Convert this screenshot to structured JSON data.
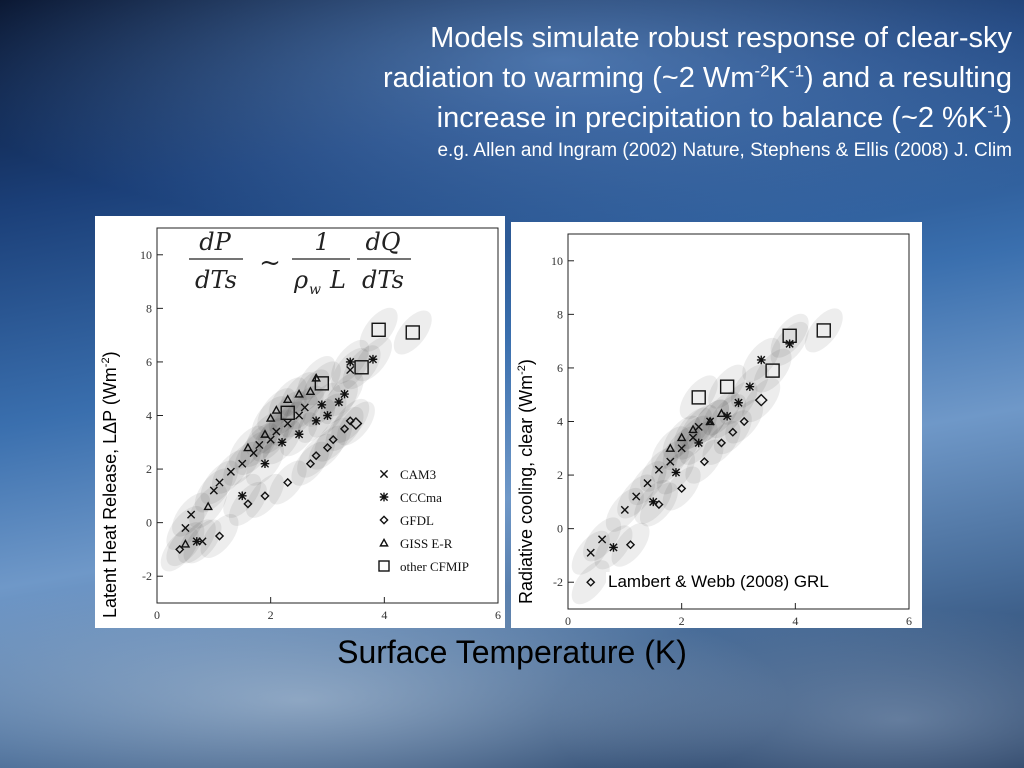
{
  "slide": {
    "title_lines": [
      {
        "text": "Models simulate robust response of clear-sky"
      },
      {
        "pre": "radiation to warming (~2 Wm",
        "sup1": "-2",
        "mid": "K",
        "sup2": "-1",
        "post": ") and a resulting"
      },
      {
        "pre": "increase in precipitation to balance (~2 %K",
        "sup1": "-1",
        "post": ")"
      }
    ],
    "reference": "e.g. Allen and Ingram (2002) Nature, Stephens & Ellis (2008) J. Clim",
    "xlabel": "Surface Temperature (K)",
    "credit": "Lambert & Webb (2008) GRL"
  },
  "equation": {
    "lhs_num": "dP",
    "lhs_den": "dTs",
    "op": "~",
    "one": "1",
    "rho": "ρ",
    "rho_sub": "w",
    "L": "L",
    "rhs_num": "dQ",
    "rhs_den": "dTs"
  },
  "legend": [
    "CAM3",
    "CCCma",
    "GFDL",
    "GISS E-R",
    "other CFMIP"
  ],
  "chart_data": [
    {
      "type": "scatter",
      "title": "",
      "ylabel_pre": "Latent Heat Release, LΔP (Wm",
      "ylabel_sup": "-2",
      "ylabel_post": ")",
      "xlim": [
        0,
        6
      ],
      "ylim": [
        -3,
        11
      ],
      "xticks": [
        0,
        2,
        4,
        6
      ],
      "yticks": [
        -2,
        0,
        2,
        4,
        6,
        8,
        10
      ],
      "legend_position": "lower-right",
      "series": [
        {
          "name": "CAM3",
          "marker": "x",
          "x": [
            0.5,
            0.6,
            0.8,
            1.0,
            1.1,
            1.3,
            1.5,
            1.7,
            1.8,
            2.0,
            2.1,
            2.3,
            2.5,
            2.6,
            3.4
          ],
          "y": [
            -0.2,
            0.3,
            -0.7,
            1.2,
            1.5,
            1.9,
            2.2,
            2.6,
            2.9,
            3.1,
            3.4,
            3.7,
            4.0,
            4.3,
            5.7
          ]
        },
        {
          "name": "CCCma",
          "marker": "asterisk",
          "x": [
            0.7,
            1.5,
            1.9,
            2.2,
            2.5,
            2.8,
            2.9,
            3.0,
            3.2,
            3.3,
            3.4,
            3.8
          ],
          "y": [
            -0.7,
            1.0,
            2.2,
            3.0,
            3.3,
            3.8,
            4.4,
            4.0,
            4.5,
            4.8,
            6.0,
            6.1
          ]
        },
        {
          "name": "GFDL",
          "marker": "diamond",
          "x": [
            0.4,
            1.1,
            1.6,
            1.9,
            2.3,
            2.7,
            2.8,
            3.0,
            3.1,
            3.3,
            3.4,
            3.5
          ],
          "y": [
            -1.0,
            -0.5,
            0.7,
            1.0,
            1.5,
            2.2,
            2.5,
            2.8,
            3.1,
            3.5,
            3.8,
            3.7
          ]
        },
        {
          "name": "GISS E-R",
          "marker": "triangle",
          "x": [
            0.5,
            0.9,
            1.6,
            1.9,
            2.0,
            2.1,
            2.3,
            2.5,
            2.7,
            2.8
          ],
          "y": [
            -0.8,
            0.6,
            2.8,
            3.3,
            3.9,
            4.2,
            4.6,
            4.8,
            4.9,
            5.4
          ]
        },
        {
          "name": "other CFMIP",
          "marker": "square",
          "x": [
            2.3,
            2.9,
            3.6,
            3.9,
            4.5
          ],
          "y": [
            4.1,
            5.2,
            5.8,
            7.2,
            7.1
          ]
        }
      ]
    },
    {
      "type": "scatter",
      "title": "",
      "ylabel_pre": "Radiative cooling, clear (Wm",
      "ylabel_sup": "-2",
      "ylabel_post": ")",
      "xlim": [
        0,
        6
      ],
      "ylim": [
        -3,
        11
      ],
      "xticks": [
        0,
        2,
        4,
        6
      ],
      "yticks": [
        -2,
        0,
        2,
        4,
        6,
        8,
        10
      ],
      "series": [
        {
          "name": "CAM3",
          "marker": "x",
          "x": [
            0.4,
            0.6,
            1.0,
            1.2,
            1.4,
            1.6,
            1.8,
            2.0,
            2.2,
            2.3,
            2.5
          ],
          "y": [
            -0.9,
            -0.4,
            0.7,
            1.2,
            1.7,
            2.2,
            2.5,
            3.0,
            3.4,
            3.8,
            4.0
          ]
        },
        {
          "name": "CCCma",
          "marker": "asterisk",
          "x": [
            0.8,
            1.5,
            1.9,
            2.3,
            2.8,
            3.0,
            3.2,
            3.4,
            3.9
          ],
          "y": [
            -0.7,
            1.0,
            2.1,
            3.2,
            4.2,
            4.7,
            5.3,
            6.3,
            6.9
          ]
        },
        {
          "name": "GFDL",
          "marker": "diamond",
          "x": [
            0.4,
            1.1,
            1.6,
            2.0,
            2.4,
            2.7,
            2.9,
            3.1,
            3.4
          ],
          "y": [
            -2.0,
            -0.6,
            0.9,
            1.5,
            2.5,
            3.2,
            3.6,
            4.0,
            4.8
          ]
        },
        {
          "name": "GISS E-R",
          "marker": "triangle",
          "x": [
            1.8,
            2.0,
            2.2,
            2.5,
            2.7
          ],
          "y": [
            3.0,
            3.4,
            3.7,
            4.0,
            4.3
          ]
        },
        {
          "name": "other CFMIP",
          "marker": "square",
          "x": [
            2.3,
            2.8,
            3.6,
            3.9,
            4.5
          ],
          "y": [
            4.9,
            5.3,
            5.9,
            7.2,
            7.4
          ]
        }
      ]
    }
  ]
}
